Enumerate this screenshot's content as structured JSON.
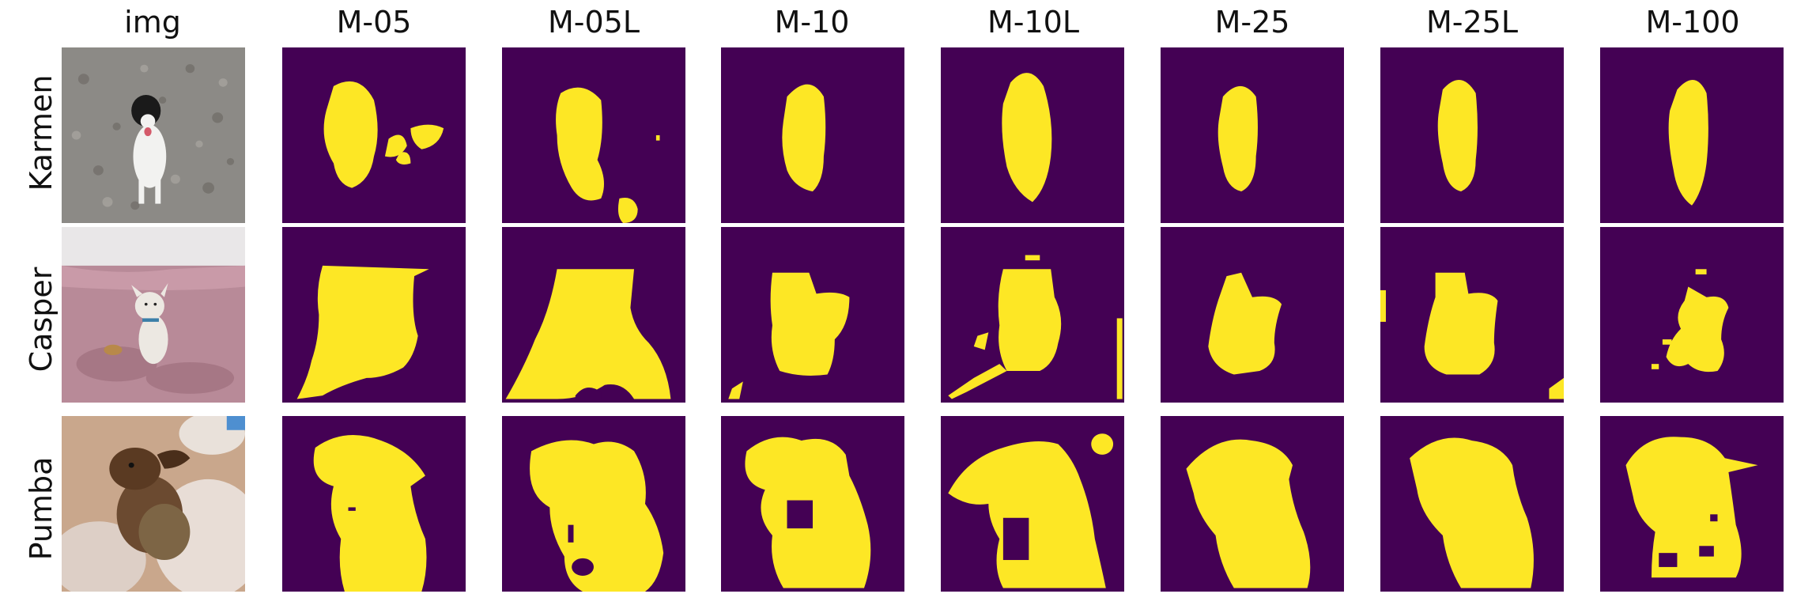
{
  "columns": [
    "img",
    "M-05",
    "M-05L",
    "M-10",
    "M-10L",
    "M-25",
    "M-25L",
    "M-100"
  ],
  "rows": [
    "Karmen",
    "Casper",
    "Pumba"
  ],
  "colors": {
    "mask_background": "#440154",
    "mask_foreground": "#fde725",
    "karmen_photo": "#8c8a86",
    "casper_photo_wall": "#e9e7e8",
    "casper_photo_sofa": "#b88a98",
    "pumba_photo": "#c9a78c"
  },
  "icons": {
    "photo": "photo-thumbnail",
    "mask": "segmentation-mask"
  }
}
